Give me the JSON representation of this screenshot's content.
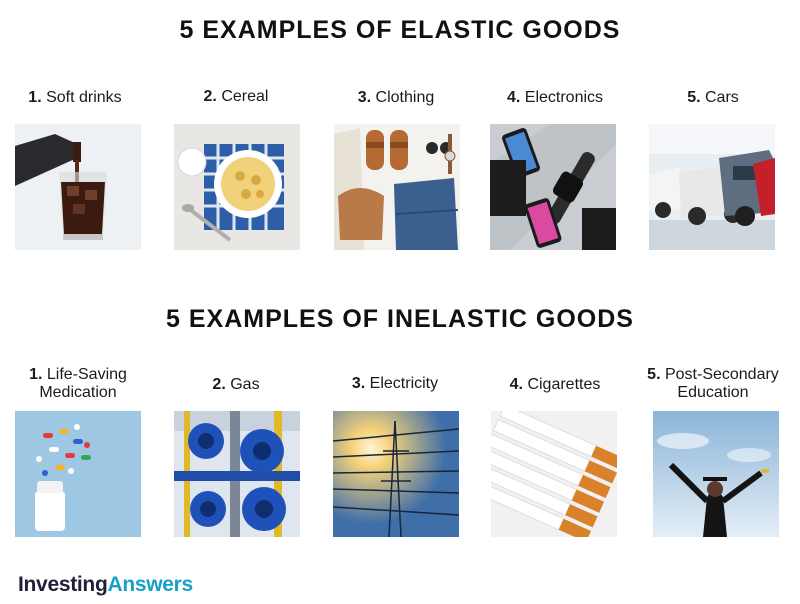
{
  "elastic": {
    "title": "5 EXAMPLES OF ELASTIC GOODS",
    "items": [
      {
        "num": "1.",
        "label": "Soft drinks"
      },
      {
        "num": "2.",
        "label": "Cereal"
      },
      {
        "num": "3.",
        "label": "Clothing"
      },
      {
        "num": "4.",
        "label": "Electronics"
      },
      {
        "num": "5.",
        "label": "Cars"
      }
    ]
  },
  "inelastic": {
    "title": "5 EXAMPLES OF INELASTIC GOODS",
    "items": [
      {
        "num": "1.",
        "label": "Life-Saving",
        "label2": "Medication"
      },
      {
        "num": "2.",
        "label": "Gas"
      },
      {
        "num": "3.",
        "label": "Electricity"
      },
      {
        "num": "4.",
        "label": "Cigarettes"
      },
      {
        "num": "5.",
        "label": "Post-Secondary",
        "label2": "Education"
      }
    ]
  },
  "brand": {
    "part1": "Investing",
    "part2": "Answers"
  }
}
